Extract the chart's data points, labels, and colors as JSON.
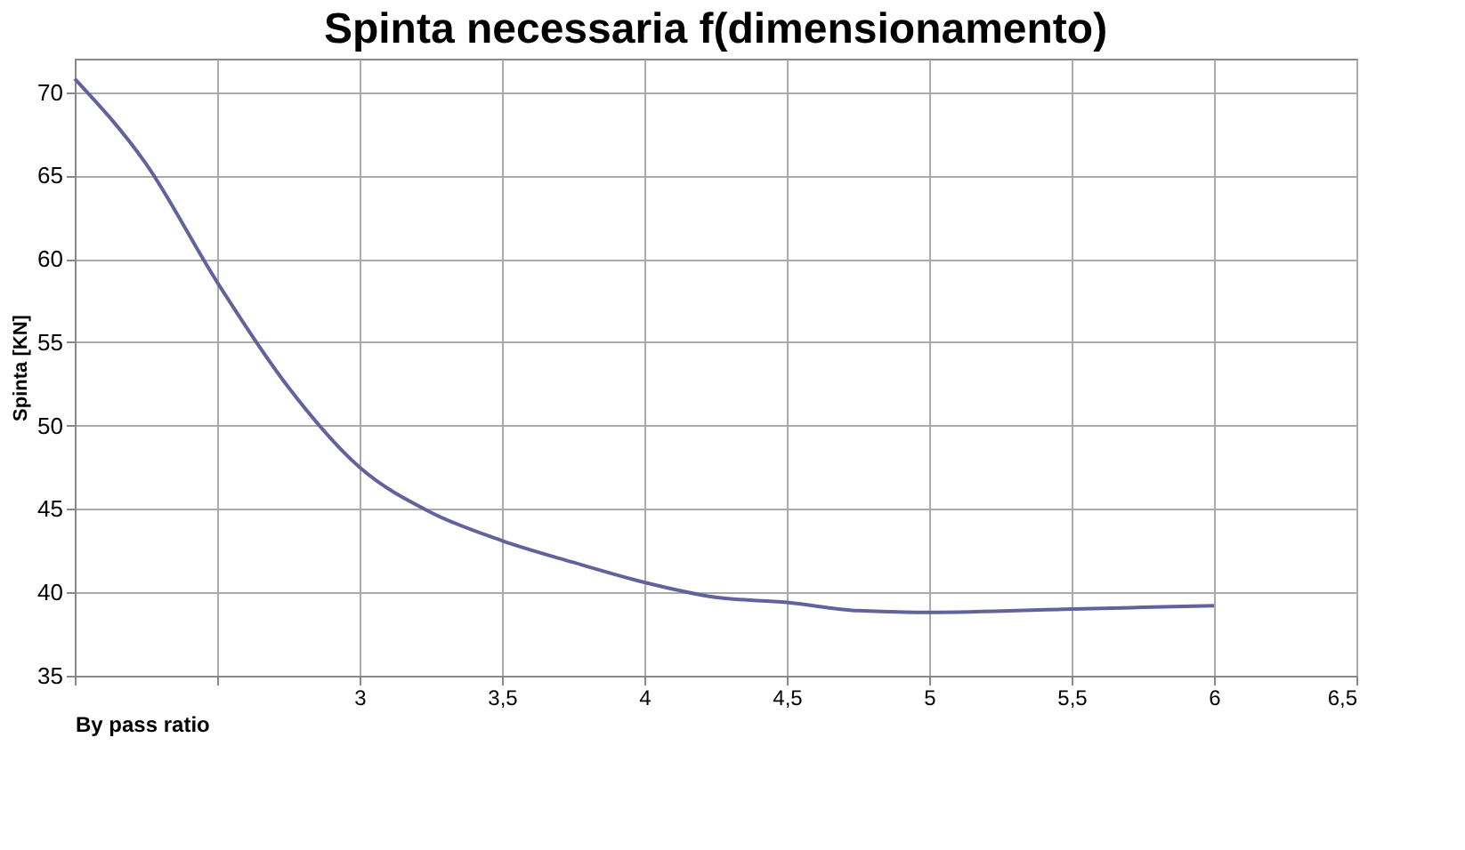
{
  "chart_data": {
    "type": "line",
    "title": "Spinta necessaria f(dimensionamento)",
    "xlabel": "By pass ratio",
    "ylabel": "Spinta [KN]",
    "x": [
      2,
      2.25,
      2.5,
      2.75,
      3,
      3.25,
      3.5,
      3.75,
      4,
      4.25,
      4.5,
      4.75,
      5,
      5.5,
      6
    ],
    "series": [
      {
        "color": "#62629c",
        "values": [
          70.8,
          65.7,
          58.6,
          52.3,
          47.5,
          44.8,
          43.1,
          41.8,
          40.6,
          39.7,
          39.4,
          38.9,
          38.8,
          39.0,
          39.2
        ]
      }
    ],
    "xlim": [
      2,
      6.5
    ],
    "ylim": [
      35,
      72
    ],
    "xticks": [
      {
        "value": 2,
        "label": null
      },
      {
        "value": 2.5,
        "label": null
      },
      3,
      {
        "value": 3.5,
        "label": "3,5"
      },
      4,
      {
        "value": 4.5,
        "label": "4,5"
      },
      5,
      {
        "value": 5.5,
        "label": "5,5"
      },
      6,
      {
        "value": 6.5,
        "label": "6,5"
      }
    ],
    "yticks": [
      35,
      40,
      45,
      50,
      55,
      60,
      65,
      70
    ],
    "grid": true,
    "marker": "none",
    "line_style": "solid"
  }
}
